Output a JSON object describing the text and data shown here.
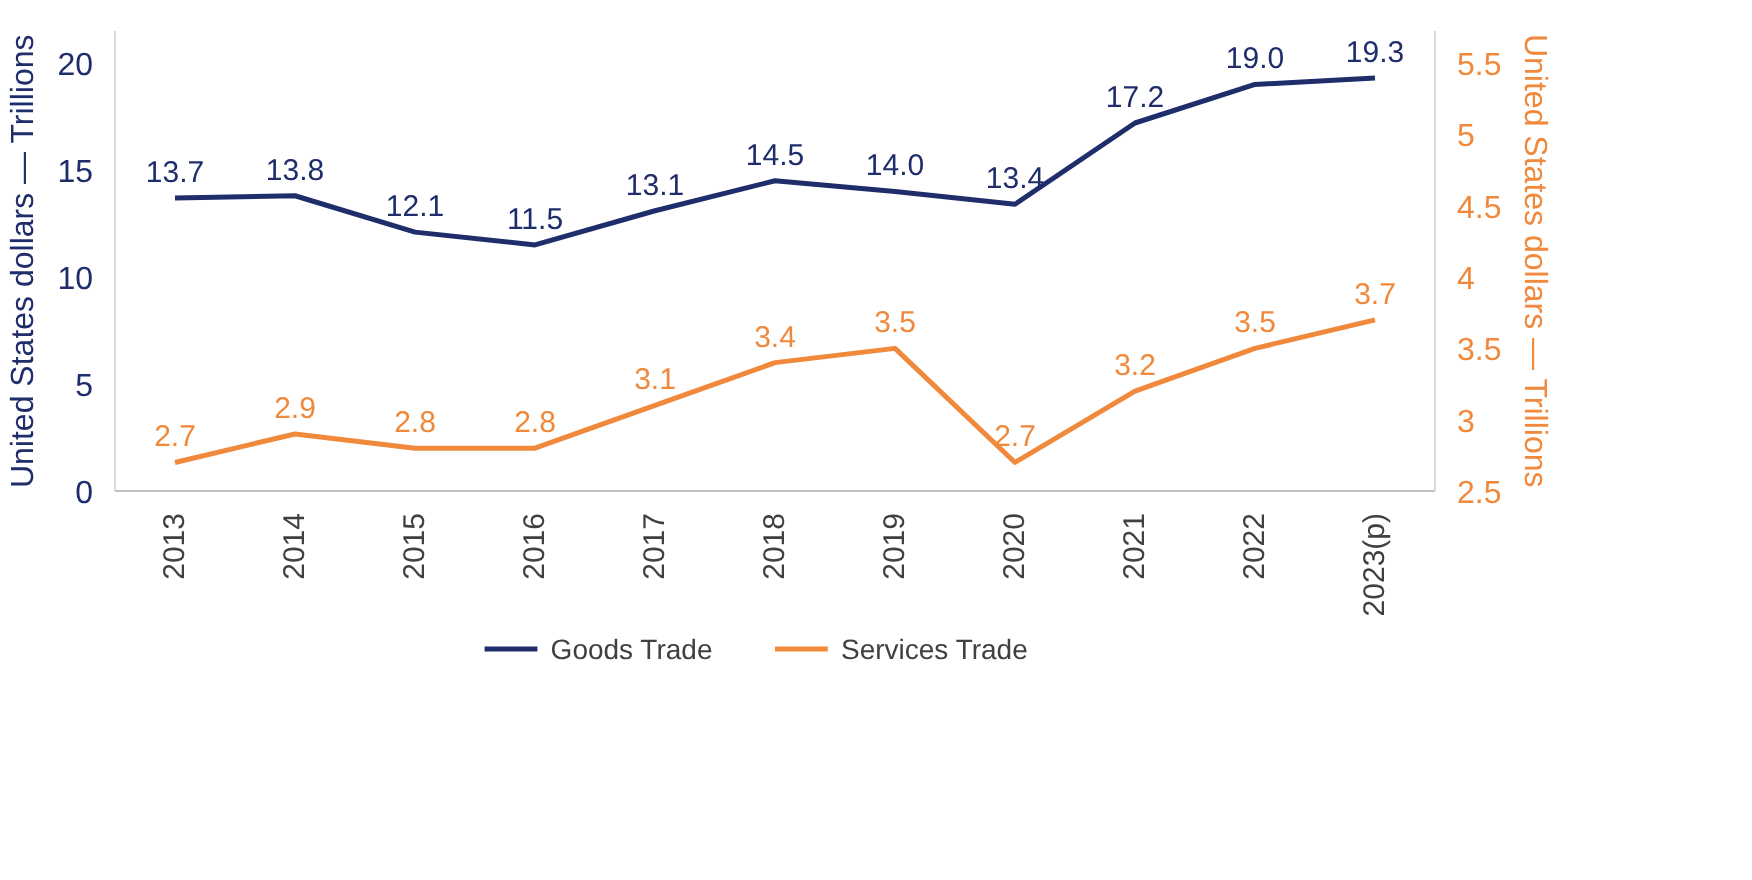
{
  "chart_data": {
    "type": "line",
    "categories": [
      "2013",
      "2014",
      "2015",
      "2016",
      "2017",
      "2018",
      "2019",
      "2020",
      "2021",
      "2022",
      "2023(p)"
    ],
    "ylabel": "United States dollars — Trillions",
    "y2label": "United States dollars — Trillions",
    "ylim": [
      0,
      21.5
    ],
    "yticks": [
      0,
      5,
      10,
      15,
      20
    ],
    "y2lim": [
      2.5,
      5.725
    ],
    "y2ticks": [
      2.5,
      3,
      3.5,
      4,
      4.5,
      5,
      5.5
    ],
    "series": [
      {
        "name": "Goods Trade",
        "color": "#1f2d6b",
        "values": [
          13.7,
          13.8,
          12.1,
          11.5,
          13.1,
          14.5,
          14.0,
          13.4,
          17.2,
          19.0,
          19.3
        ],
        "value_labels": [
          "13.7",
          "13.8",
          "12.1",
          "11.5",
          "13.1",
          "14.5",
          "14.0",
          "13.4",
          "17.2",
          "19.0",
          "19.3"
        ]
      },
      {
        "name": "Services Trade",
        "color": "#f0893b",
        "axis": "y2",
        "values": [
          2.7,
          2.9,
          2.8,
          2.8,
          3.1,
          3.4,
          3.5,
          2.7,
          3.2,
          3.5,
          3.7
        ],
        "value_labels": [
          "2.7",
          "2.9",
          "2.8",
          "2.8",
          "3.1",
          "3.4",
          "3.5",
          "2.7",
          "3.2",
          "3.5",
          "3.7"
        ]
      }
    ],
    "grid": false,
    "legend": "bottom",
    "marker": "none",
    "line_style": "solid"
  }
}
